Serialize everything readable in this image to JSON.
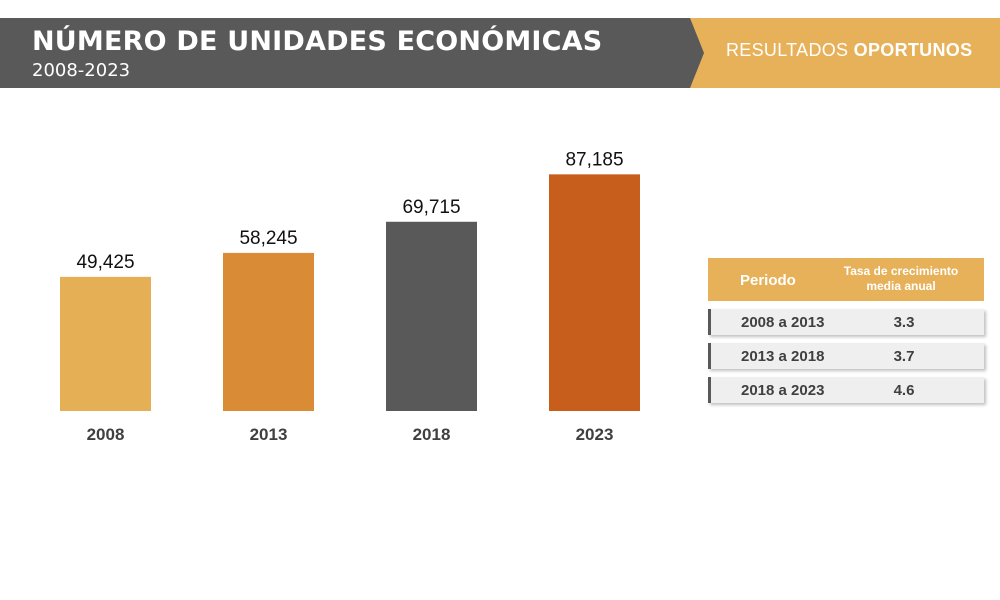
{
  "header": {
    "title": "NÚMERO DE UNIDADES ECONÓMICAS",
    "subtitle": "2008-2023",
    "badge_prefix": "RESULTADOS ",
    "badge_bold": "OPORTUNOS"
  },
  "colors": {
    "header_dark": "#595959",
    "accent": "#e7b15a"
  },
  "chart_data": {
    "type": "bar",
    "categories": [
      "2008",
      "2013",
      "2018",
      "2023"
    ],
    "values": [
      49425,
      58245,
      69715,
      87185
    ],
    "value_labels": [
      "49,425",
      "58,245",
      "69,715",
      "87,185"
    ],
    "bar_colors": [
      "#e5b055",
      "#d98b35",
      "#595959",
      "#c75e1c"
    ],
    "title": "",
    "xlabel": "",
    "ylabel": "",
    "ylim": [
      0,
      90000
    ],
    "grid": false,
    "legend": "none"
  },
  "table": {
    "headers": [
      "Periodo",
      "Tasa de crecimiento media anual"
    ],
    "rows": [
      {
        "period": "2008 a 2013",
        "rate": "3.3"
      },
      {
        "period": "2013 a 2018",
        "rate": "3.7"
      },
      {
        "period": "2018 a 2023",
        "rate": "4.6"
      }
    ]
  }
}
